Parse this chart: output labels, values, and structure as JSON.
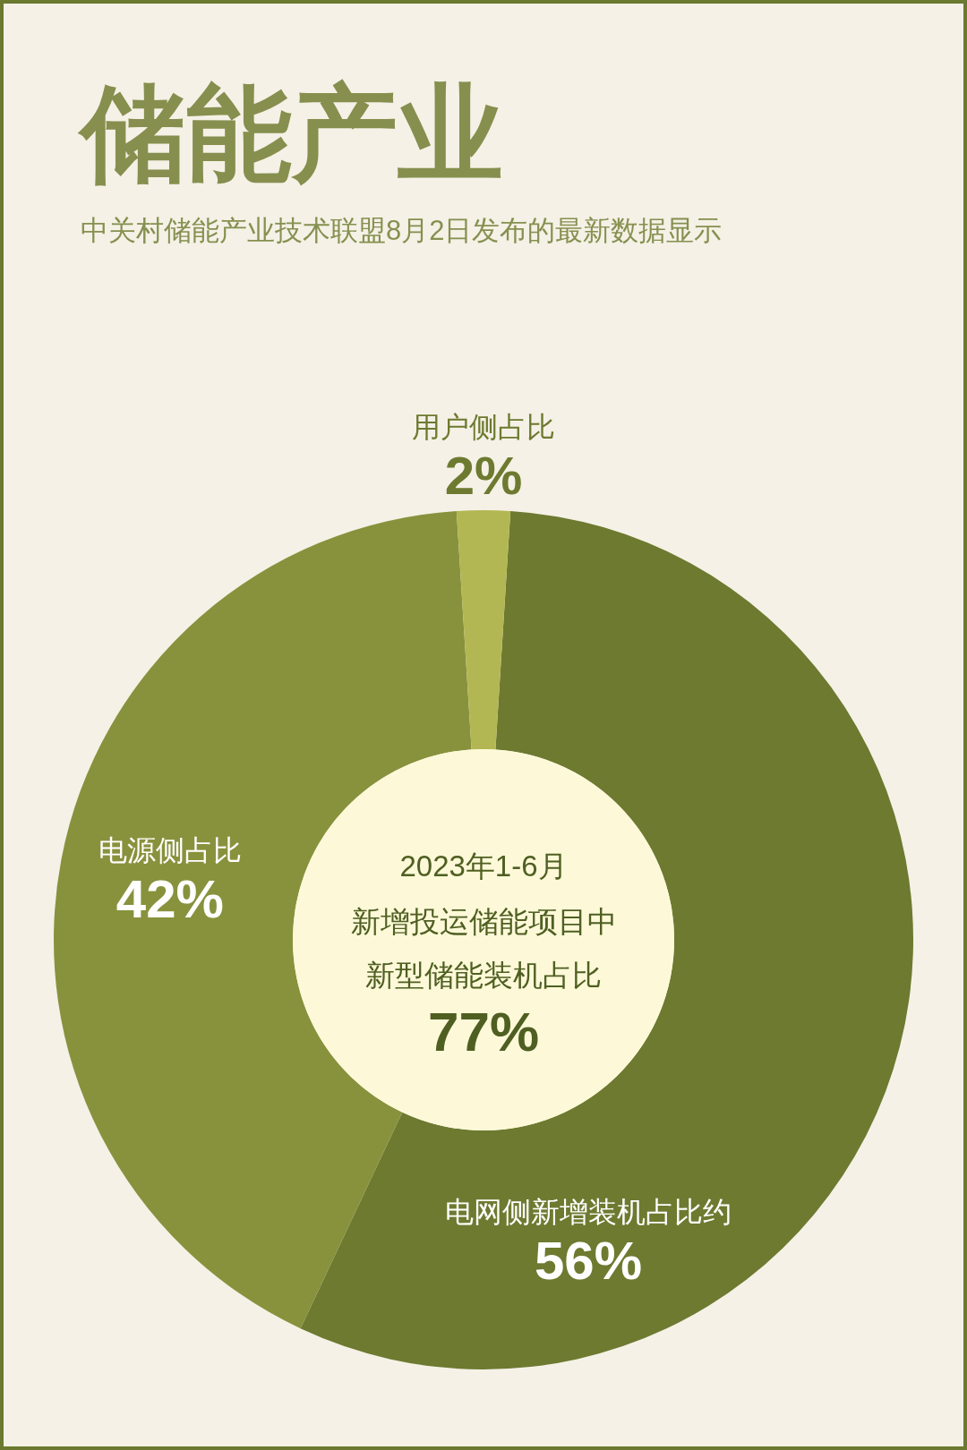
{
  "chart_data": {
    "type": "donut",
    "title": "储能产业",
    "subtitle": "中关村储能产业技术联盟8月2日发布的最新数据显示",
    "categories": [
      "电网侧新增装机占比约",
      "电源侧占比",
      "用户侧占比"
    ],
    "values": [
      56,
      42,
      2
    ],
    "value_labels": [
      "56%",
      "42%",
      "2%"
    ],
    "colors": [
      "#6d7a30",
      "#88923d",
      "#b3b753"
    ],
    "annotations": [
      "2023年1-6月",
      "新增投运储能项目中",
      "新型储能装机占比",
      "77%"
    ]
  }
}
